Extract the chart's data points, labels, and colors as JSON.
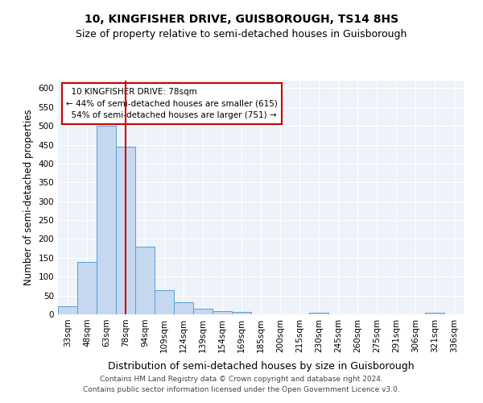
{
  "title": "10, KINGFISHER DRIVE, GUISBOROUGH, TS14 8HS",
  "subtitle": "Size of property relative to semi-detached houses in Guisborough",
  "xlabel": "Distribution of semi-detached houses by size in Guisborough",
  "ylabel": "Number of semi-detached properties",
  "footer_line1": "Contains HM Land Registry data © Crown copyright and database right 2024.",
  "footer_line2": "Contains public sector information licensed under the Open Government Licence v3.0.",
  "bin_labels": [
    "33sqm",
    "48sqm",
    "63sqm",
    "78sqm",
    "94sqm",
    "109sqm",
    "124sqm",
    "139sqm",
    "154sqm",
    "169sqm",
    "185sqm",
    "200sqm",
    "215sqm",
    "230sqm",
    "245sqm",
    "260sqm",
    "275sqm",
    "291sqm",
    "306sqm",
    "321sqm",
    "336sqm"
  ],
  "bar_values": [
    22,
    140,
    500,
    445,
    180,
    65,
    33,
    16,
    8,
    6,
    0,
    0,
    0,
    5,
    0,
    0,
    0,
    0,
    0,
    5,
    0
  ],
  "bar_color": "#c5d8f0",
  "bar_edge_color": "#5a9fd4",
  "property_value": 78,
  "property_label": "10 KINGFISHER DRIVE: 78sqm",
  "pct_smaller": 44,
  "n_smaller": 615,
  "pct_larger": 54,
  "n_larger": 751,
  "vline_color": "#cc0000",
  "annotation_box_edge_color": "#cc0000",
  "ylim": [
    0,
    620
  ],
  "yticks": [
    0,
    50,
    100,
    150,
    200,
    250,
    300,
    350,
    400,
    450,
    500,
    550,
    600
  ],
  "bg_color": "#eef2f9",
  "title_fontsize": 10,
  "subtitle_fontsize": 9,
  "axis_label_fontsize": 8.5,
  "tick_fontsize": 7.5,
  "annotation_fontsize": 7.5,
  "footer_fontsize": 6.5
}
